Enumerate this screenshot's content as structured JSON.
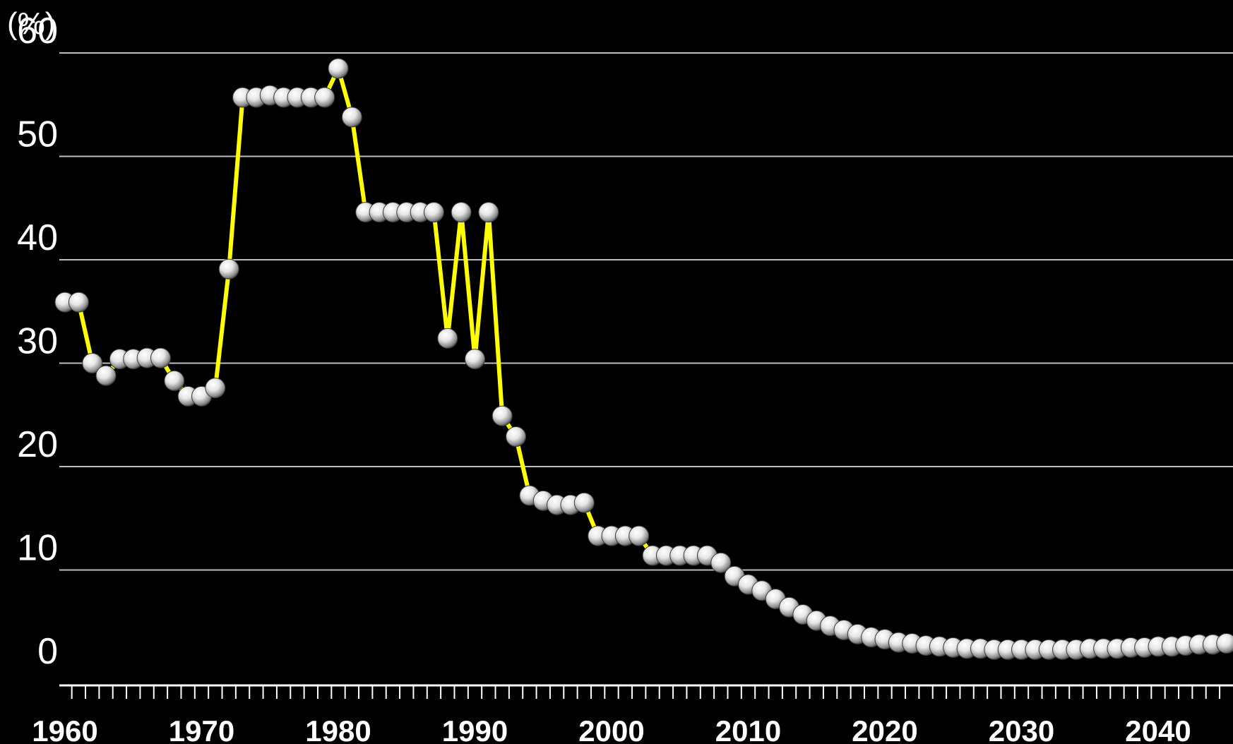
{
  "chart_data": {
    "type": "line",
    "ylabel": "(%)",
    "xlabel": "",
    "title": "",
    "ylim": [
      0,
      60
    ],
    "xlim": [
      1960,
      2045
    ],
    "grid": true,
    "y_ticks": [
      "0",
      "10",
      "20",
      "30",
      "40",
      "50",
      "60"
    ],
    "x_ticks": [
      "1960",
      "1970",
      "1980",
      "1990",
      "2000",
      "2010",
      "2020",
      "2030",
      "2040"
    ],
    "colors": {
      "line": "#ffff00",
      "marker": "#e6e6e6",
      "grid": "#bdbdbd",
      "background": "#000000"
    },
    "series": [
      {
        "x": [
          1960,
          1961,
          1962,
          1963,
          1964,
          1965,
          1966,
          1967,
          1968,
          1969,
          1970,
          1971,
          1972,
          1973,
          1974,
          1975,
          1976,
          1977,
          1978,
          1979,
          1980,
          1981,
          1982,
          1983,
          1984,
          1985,
          1986,
          1987,
          1988,
          1989,
          1990,
          1991,
          1992,
          1993,
          1994,
          1995,
          1996,
          1997,
          1998,
          1999,
          2000,
          2001,
          2002,
          2003,
          2004,
          2005,
          2006,
          2007,
          2008,
          2009,
          2010,
          2011,
          2012,
          2013,
          2014,
          2015,
          2016,
          2017,
          2018,
          2019,
          2020,
          2021,
          2022,
          2023,
          2024,
          2025,
          2026,
          2027,
          2028,
          2029,
          2030,
          2031,
          2032,
          2033,
          2034,
          2035,
          2036,
          2037,
          2038,
          2039,
          2040,
          2041,
          2042,
          2043,
          2044,
          2045
        ],
        "values": [
          35.9,
          35.9,
          30,
          28.8,
          30.4,
          30.4,
          30.5,
          30.5,
          28.3,
          26.8,
          26.8,
          27.6,
          39.1,
          55.7,
          55.7,
          55.9,
          55.7,
          55.7,
          55.7,
          55.7,
          58.5,
          53.8,
          44.6,
          44.6,
          44.6,
          44.6,
          44.6,
          44.6,
          32.4,
          44.6,
          30.4,
          44.6,
          24.9,
          22.9,
          17.2,
          16.7,
          16.3,
          16.3,
          16.5,
          13.3,
          13.3,
          13.3,
          13.3,
          11.4,
          11.4,
          11.4,
          11.4,
          11.4,
          10.7,
          9.4,
          8.6,
          8.0,
          7.2,
          6.4,
          5.7,
          5.1,
          4.6,
          4.2,
          3.8,
          3.5,
          3.3,
          3.0,
          2.9,
          2.7,
          2.6,
          2.5,
          2.4,
          2.4,
          2.3,
          2.3,
          2.3,
          2.3,
          2.3,
          2.3,
          2.3,
          2.4,
          2.4,
          2.4,
          2.5,
          2.5,
          2.6,
          2.6,
          2.7,
          2.8,
          2.8,
          2.9
        ]
      }
    ]
  }
}
